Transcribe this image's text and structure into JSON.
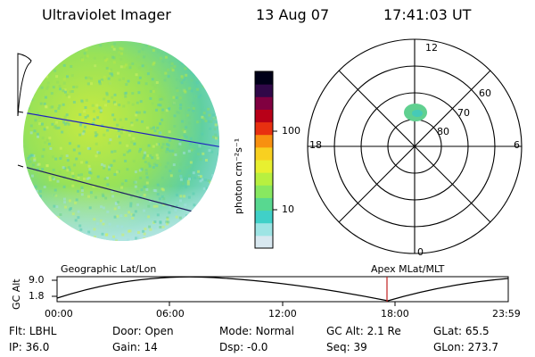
{
  "header": {
    "instrument": "Ultraviolet Imager",
    "date": "13 Aug 07",
    "time": "17:41:03 UT"
  },
  "colorbar": {
    "label": "photon cm⁻²s⁻¹",
    "ticks": [
      "100",
      "10"
    ],
    "colors": [
      "#d8e8f0",
      "#9ee4e4",
      "#40d0c8",
      "#58d890",
      "#88e860",
      "#b8f040",
      "#e8f030",
      "#f8d020",
      "#f89010",
      "#e83010",
      "#b80018",
      "#800040",
      "#300848",
      "#000018"
    ]
  },
  "polar": {
    "mlt_labels": {
      "top": "12",
      "bottom": "0",
      "left": "18",
      "right": "6"
    },
    "lat_labels": [
      "60",
      "70",
      "80"
    ],
    "spot_color": "#60d090"
  },
  "orbit": {
    "left_label": "Geographic Lat/Lon",
    "right_label": "Apex MLat/MLT",
    "axis_label": "GC Alt",
    "y_ticks": [
      "9.0",
      "1.8"
    ],
    "x_ticks": [
      "00:00",
      "06:00",
      "12:00",
      "18:00",
      "23:59"
    ],
    "marker_time": "17:41",
    "marker_color": "#c02020"
  },
  "status": [
    [
      {
        "label": "Flt:",
        "value": "LBHL"
      },
      {
        "label": "IP:",
        "value": "36.0"
      }
    ],
    [
      {
        "label": "Door:",
        "value": "Open"
      },
      {
        "label": "Gain:",
        "value": "14"
      }
    ],
    [
      {
        "label": "Mode:",
        "value": "Normal"
      },
      {
        "label": "Dsp:",
        "value": "-0.0"
      }
    ],
    [
      {
        "label": "GC Alt:",
        "value": "2.1 Re"
      },
      {
        "label": "Seq:",
        "value": "39"
      }
    ],
    [
      {
        "label": "GLat:",
        "value": "65.5"
      },
      {
        "label": "GLon:",
        "value": "273.7"
      }
    ]
  ]
}
